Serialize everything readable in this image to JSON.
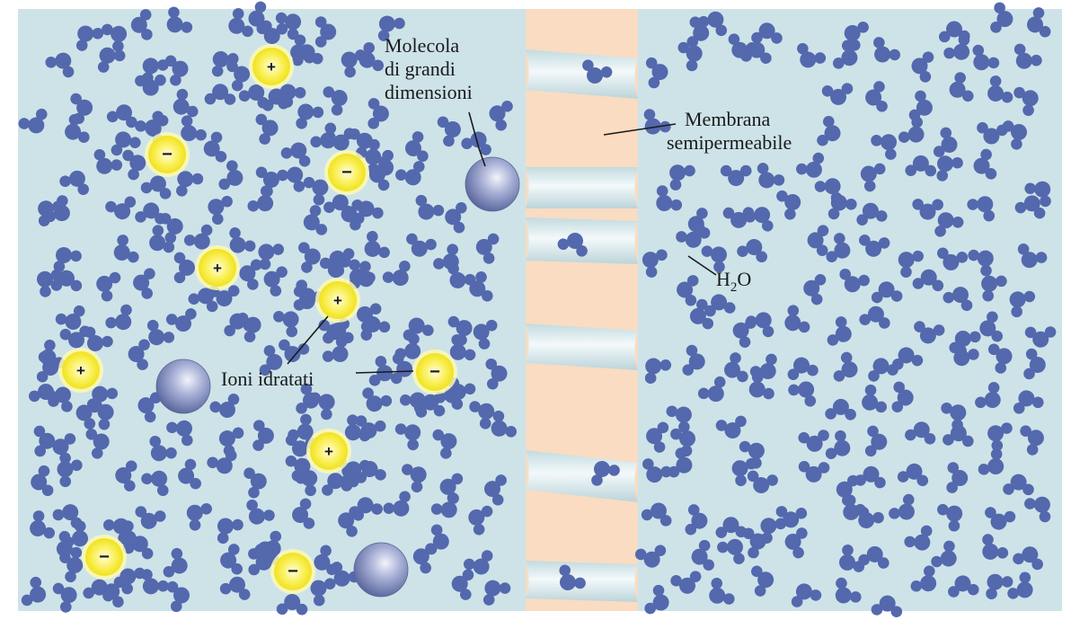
{
  "labels": {
    "large_molecule": [
      "Molecola",
      "di grandi",
      "dimensioni"
    ],
    "membrane": [
      "Membrana",
      "semipermeabile"
    ],
    "water_prefix": "H",
    "water_sub": "2",
    "water_suffix": "O",
    "hydrated_ions": "Ioni idratati"
  },
  "ions": {
    "positive_symbol": "+",
    "negative_symbol": "−"
  },
  "colors": {
    "solution": "#cde3e8",
    "membrane": "#f9dcc2",
    "water_molecule": "#5468ad",
    "ion_fill": "#f6ec28",
    "ion_glow": "#fdf9b0",
    "large_molecule_light": "#dfe3f3",
    "large_molecule_dark": "#6a75a8",
    "pore": "#e6f1f4"
  }
}
